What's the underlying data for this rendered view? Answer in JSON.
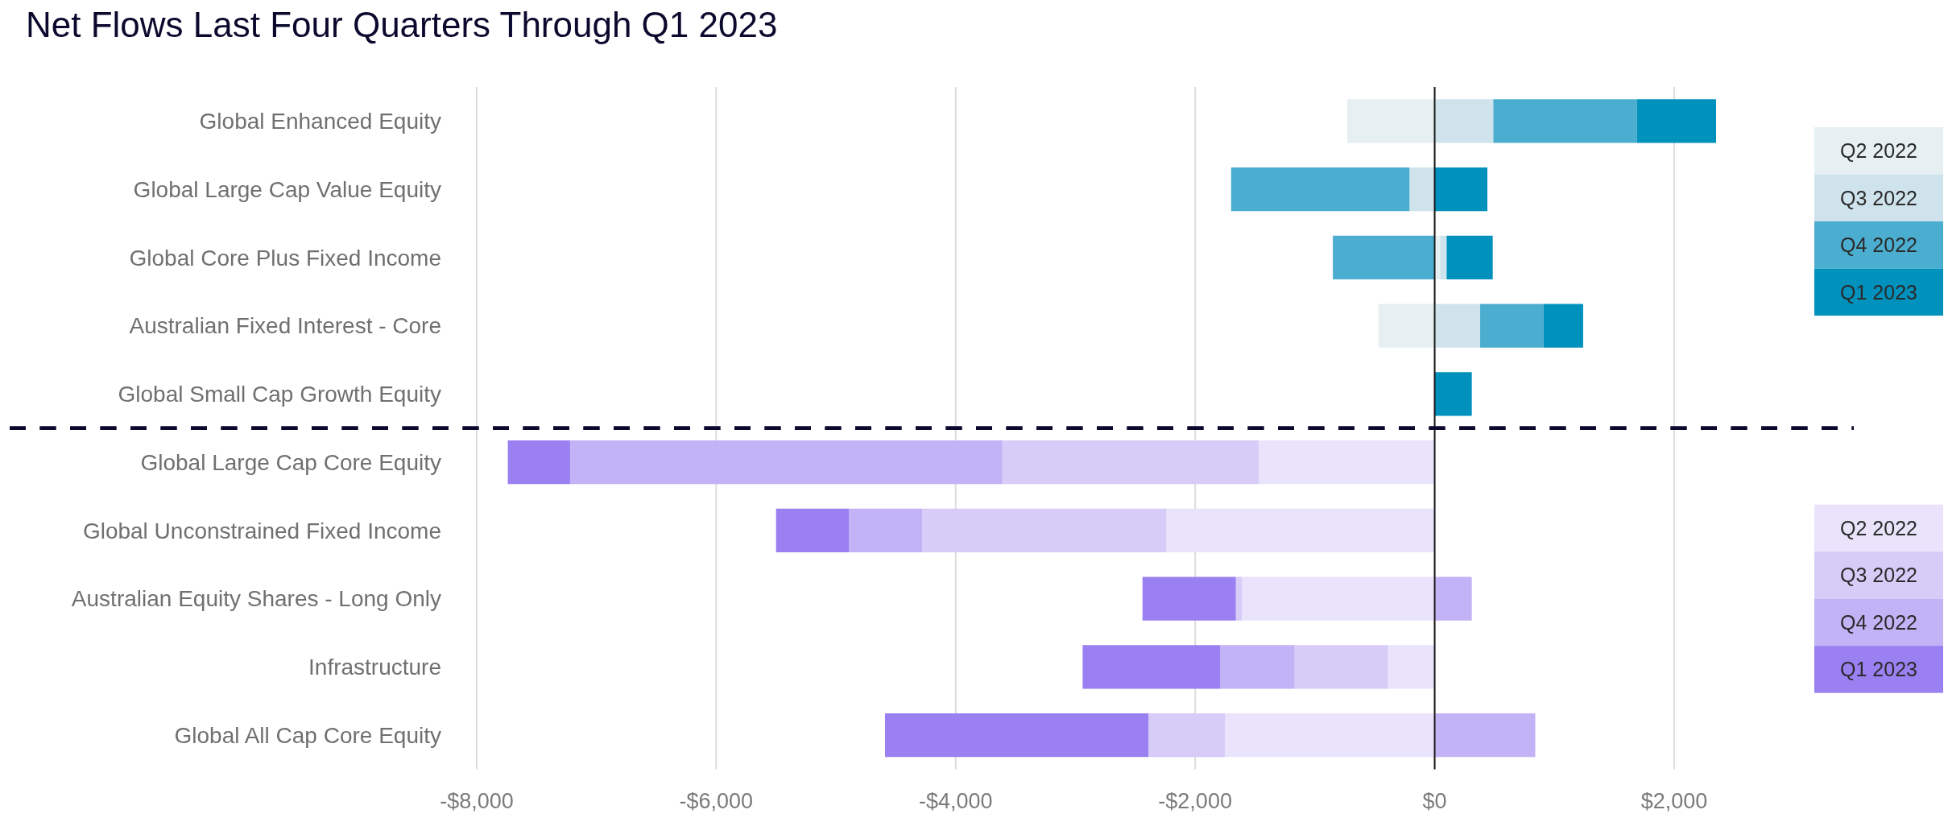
{
  "chart_data": [
    {
      "type": "bar",
      "orientation": "horizontal",
      "stacked": true,
      "title": "Net Flows Last Four Quarters Through Q1 2023",
      "categories": [
        "Global Enhanced Equity",
        "Global Large Cap Value Equity",
        "Global Core Plus Fixed Income",
        "Australian Fixed Interest - Core",
        "Global Small Cap Growth Equity"
      ],
      "series": [
        {
          "name": "Q2 2022",
          "color": "#e6f0f3",
          "values": [
            -730,
            null,
            45,
            -470,
            null
          ]
        },
        {
          "name": "Q3 2022",
          "color": "#cfe3ec",
          "values": [
            490,
            -210,
            55,
            380,
            null
          ]
        },
        {
          "name": "Q4 2022",
          "color": "#4badcf",
          "values": [
            1200,
            -1490,
            -850,
            530,
            null
          ]
        },
        {
          "name": "Q1 2023",
          "color": "#0091bd",
          "values": [
            660,
            440,
            385,
            330,
            310
          ]
        }
      ],
      "xlim": [
        -11900,
        3500
      ],
      "xticks": [
        {
          "value": -8000,
          "label": null
        },
        {
          "value": -6000,
          "label": null
        },
        {
          "value": -4000,
          "label": null
        },
        {
          "value": -2000,
          "label": null
        },
        {
          "value": 0,
          "label": null
        },
        {
          "value": 2000,
          "label": null
        }
      ],
      "grid": "x",
      "legend": "top right",
      "tick_labels": "y"
    },
    {
      "type": "bar",
      "orientation": "horizontal",
      "stacked": true,
      "categories": [
        "Global Large Cap Core Equity",
        "Global Unconstrained Fixed Income",
        "Australian Equity Shares - Long Only",
        "Infrastructure",
        "Global All Cap Core Equity"
      ],
      "series": [
        {
          "name": "Q2 2022",
          "color": "#e9e4fb",
          "values": [
            -1470,
            -2240,
            -1610,
            -390,
            -1750
          ]
        },
        {
          "name": "Q3 2022",
          "color": "#d7cbf7",
          "values": [
            -2140,
            -2040,
            -50,
            -780,
            -640
          ]
        },
        {
          "name": "Q4 2022",
          "color": "#c2b2f6",
          "values": [
            -3610,
            -610,
            310,
            -620,
            840
          ]
        },
        {
          "name": "Q1 2023",
          "color": "#9b80f2",
          "values": [
            -520,
            -610,
            -780,
            -1150,
            -2200
          ]
        }
      ],
      "xlim": [
        -11900,
        3500
      ],
      "xticks": [
        {
          "value": -8000,
          "label": "-$8,000"
        },
        {
          "value": -6000,
          "label": "-$6,000"
        },
        {
          "value": -4000,
          "label": "-$4,000"
        },
        {
          "value": -2000,
          "label": "-$2,000"
        },
        {
          "value": 0,
          "label": "$0"
        },
        {
          "value": 2000,
          "label": "$2,000"
        }
      ],
      "grid": "x",
      "legend": "right"
    }
  ]
}
